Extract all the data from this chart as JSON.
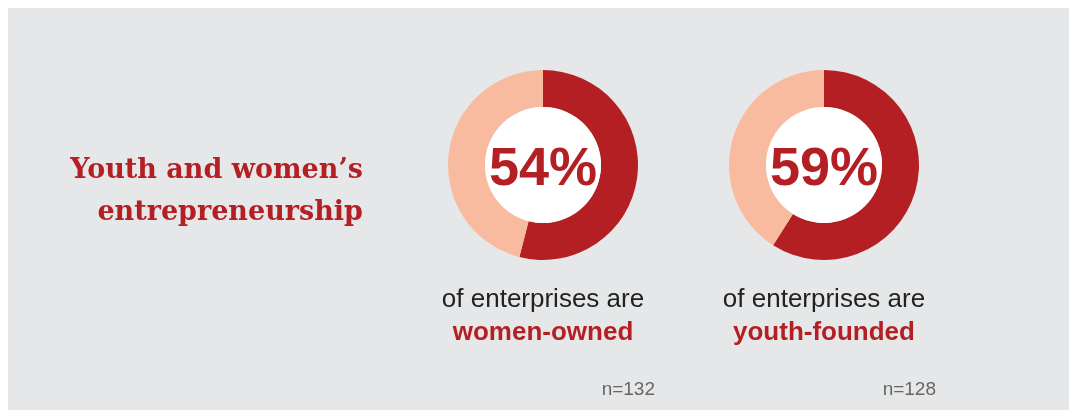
{
  "chart_data": [
    {
      "type": "other",
      "title": "Youth and women’s entrepreneurship"
    },
    {
      "type": "donut",
      "categories": [
        null,
        null
      ],
      "values": [
        54,
        46
      ],
      "colors": [
        "#b41f24",
        "#f9bb9f"
      ],
      "value_labels": [
        "54%",
        null
      ],
      "title": "of enterprises are",
      "subtitle": "women-owned",
      "annotations": [
        "n=132"
      ]
    },
    {
      "type": "donut",
      "categories": [
        null,
        null
      ],
      "values": [
        59,
        41
      ],
      "colors": [
        "#b41f24",
        "#f9bb9f"
      ],
      "value_labels": [
        "59%",
        null
      ],
      "title": "of enterprises are",
      "subtitle": "youth-founded",
      "annotations": [
        "n=128"
      ]
    }
  ]
}
